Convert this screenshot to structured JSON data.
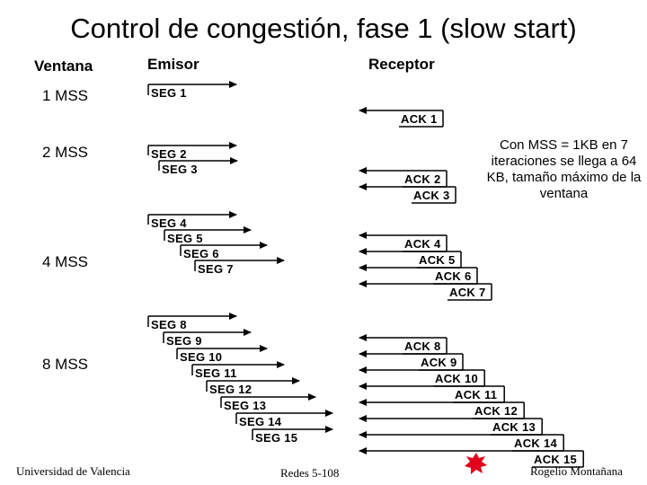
{
  "title": "Control de congestión, fase 1 (slow start)",
  "headers": {
    "window": "Ventana",
    "sender": "Emisor",
    "receiver": "Receptor"
  },
  "windows": [
    "1 MSS",
    "2 MSS",
    "4 MSS",
    "8 MSS"
  ],
  "segments": [
    "SEG 1",
    "SEG 2",
    "SEG 3",
    "SEG 4",
    "SEG 5",
    "SEG 6",
    "SEG 7",
    "SEG 8",
    "SEG 9",
    "SEG 10",
    "SEG 11",
    "SEG 12",
    "SEG 13",
    "SEG 14",
    "SEG 15"
  ],
  "acks": [
    "ACK 1",
    "ACK 2",
    "ACK 3",
    "ACK 4",
    "ACK 5",
    "ACK 6",
    "ACK 7",
    "ACK 8",
    "ACK 9",
    "ACK 10",
    "ACK 11",
    "ACK 12",
    "ACK 13",
    "ACK 14",
    "ACK 15"
  ],
  "note": "Con MSS = 1KB en 7 iteraciones se llega a 64 KB, tamaño máximo de la ventana",
  "footer": {
    "left": "Universidad de Valencia",
    "center": "Redes 5-108",
    "right": "Rogelio Montañana"
  },
  "colors": {
    "line": "#000000",
    "burst": "#e0001b"
  }
}
